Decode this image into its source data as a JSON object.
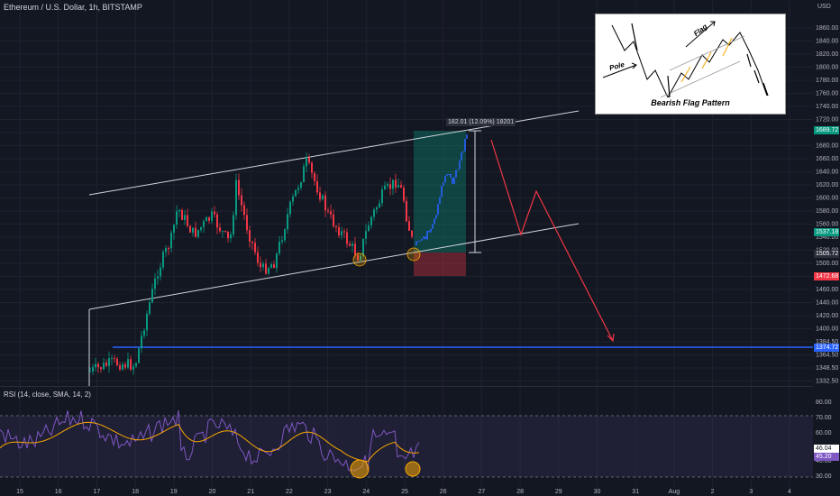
{
  "header": {
    "title": "Ethereum / U.S. Dollar, 1h, BITSTAMP"
  },
  "inset": {
    "title": "Bearish Flag Pattern",
    "flag_label": "Flag",
    "pole_label": "Pole"
  },
  "measure_label": "182.01 (12.09%) 18201",
  "price_axis": {
    "currency": "USD",
    "ticks": [
      "1860.00",
      "1840.00",
      "1820.00",
      "1800.00",
      "1780.00",
      "1760.00",
      "1740.00",
      "1720.00",
      "1700.00",
      "1680.00",
      "1660.00",
      "1640.00",
      "1620.00",
      "1600.00",
      "1580.00",
      "1560.00",
      "1540.00",
      "1520.00",
      "1500.00",
      "1480.00",
      "1460.00",
      "1440.00",
      "1420.00",
      "1400.00",
      "1384.50",
      "1364.50",
      "1348.50",
      "1332.50"
    ],
    "tags": [
      {
        "label": "1689.72",
        "color": "#089981"
      },
      {
        "label": "1537.18",
        "color": "#089981"
      },
      {
        "label": "1505.72",
        "color": "#2a2e39"
      },
      {
        "label": "1472.68",
        "color": "#f23645"
      },
      {
        "label": "1374.72",
        "color": "#2962ff"
      }
    ]
  },
  "time_axis": {
    "labels": [
      "15",
      "16",
      "17",
      "18",
      "19",
      "20",
      "21",
      "22",
      "23",
      "24",
      "25",
      "26",
      "27",
      "28",
      "29",
      "30",
      "31",
      "Aug",
      "2",
      "3",
      "4"
    ]
  },
  "rsi": {
    "header": "RSI (14, close, SMA, 14, 2)",
    "ticks": [
      "80.00",
      "70.00",
      "60.00",
      "40.00",
      "30.00"
    ],
    "tags": [
      {
        "label": "46.04",
        "color": "#ffffff"
      },
      {
        "label": "45.20",
        "color": "#7e57c2"
      }
    ]
  },
  "colors": {
    "bull": "#089981",
    "bear": "#f23645",
    "blue": "#2962ff",
    "channel": "#d1d4dc",
    "rsi": "#7e57c2",
    "rsi_ma": "#f7a600"
  }
}
